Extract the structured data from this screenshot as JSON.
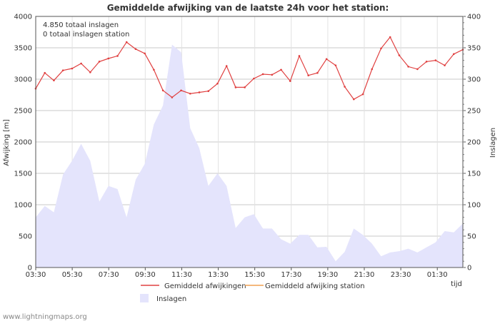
{
  "chart_data": {
    "type": "line+area",
    "title": "Gemiddelde afwijking van de laatste 24h voor het station:",
    "ylabel_left": "Afwijking  [m]",
    "ylabel_right": "Inslagen",
    "xlabel": "tijd",
    "ylim_left": [
      0,
      4000
    ],
    "ylim_right": [
      0,
      400
    ],
    "left_ticks": [
      "0",
      "500",
      "1000",
      "1500",
      "2000",
      "2500",
      "3000",
      "3500",
      "4000"
    ],
    "right_ticks": [
      "0",
      "50",
      "100",
      "150",
      "200",
      "250",
      "300",
      "350",
      "400"
    ],
    "x_tick_labels": [
      "03:30",
      "05:30",
      "07:30",
      "09:30",
      "11:30",
      "13:30",
      "15:30",
      "17:30",
      "19:30",
      "21:30",
      "23:30",
      "01:30"
    ],
    "info_lines": [
      "4.850 totaal inslagen",
      "0 totaal inslagen station"
    ],
    "series": [
      {
        "name": "Gemiddeld afwijkingen",
        "axis": "left",
        "color": "#e04040",
        "values": [
          2850,
          3100,
          2980,
          3140,
          3170,
          3250,
          3110,
          3280,
          3330,
          3370,
          3590,
          3480,
          3410,
          3150,
          2820,
          2710,
          2820,
          2770,
          2790,
          2810,
          2930,
          3210,
          2870,
          2870,
          3010,
          3080,
          3070,
          3150,
          2970,
          3370,
          3060,
          3100,
          3320,
          3220,
          2880,
          2680,
          2760,
          3160,
          3490,
          3670,
          3380,
          3200,
          3160,
          3280,
          3300,
          3220,
          3400,
          3470
        ]
      },
      {
        "name": "Gemiddeld afwijking station",
        "axis": "left",
        "color": "#f0a050",
        "values": []
      },
      {
        "name": "Inslagen",
        "axis": "right",
        "type": "area",
        "color": "#e4e4fc",
        "values": [
          80,
          98,
          88,
          148,
          170,
          197,
          170,
          105,
          130,
          125,
          80,
          140,
          165,
          228,
          258,
          355,
          343,
          222,
          190,
          130,
          150,
          130,
          63,
          80,
          85,
          62,
          62,
          45,
          38,
          52,
          52,
          32,
          33,
          10,
          25,
          62,
          52,
          38,
          18,
          24,
          26,
          30,
          24,
          32,
          40,
          58,
          56,
          70
        ]
      }
    ],
    "legend": [
      {
        "label": "Gemiddeld afwijkingen",
        "kind": "line",
        "color": "#e04040"
      },
      {
        "label": "Gemiddeld afwijking station",
        "kind": "line",
        "color": "#f0a050"
      },
      {
        "label": "Inslagen",
        "kind": "area",
        "color": "#e4e4fc"
      }
    ],
    "watermark": "www.lightningmaps.org"
  }
}
